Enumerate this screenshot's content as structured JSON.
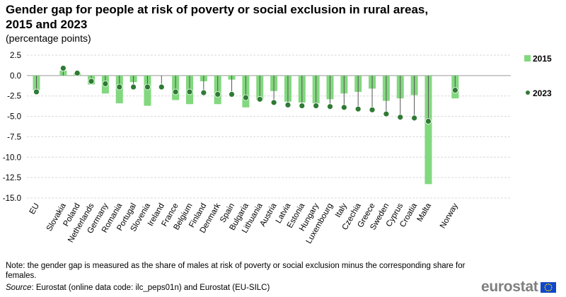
{
  "title": "Gender gap for people at risk of poverty or social exclusion in rural areas, 2015 and 2023",
  "subtitle": "(percentage points)",
  "note": "Note: the gender gap is measured as the share of males at risk of poverty or social exclusion minus the corresponding share for females.",
  "source_label": "Source",
  "source_text": ": Eurostat (online data code: ilc_peps01n) and Eurostat (EU-SILC)",
  "logo_text": "eurostat",
  "colors": {
    "bar": "#82d87e",
    "dot": "#2f7a34",
    "line": "#555555",
    "grid": "#d9d9d9",
    "flag_bg": "#0e47cb",
    "flag_star": "#ffe100"
  },
  "chart_data": {
    "type": "bar",
    "categories": [
      "EU",
      "Slovakia",
      "Poland",
      "Netherlands",
      "Germany",
      "Romania",
      "Portugal",
      "Slovenia",
      "Ireland",
      "France",
      "Belgium",
      "Finland",
      "Denmark",
      "Spain",
      "Bulgaria",
      "Lithuania",
      "Austria",
      "Latvia",
      "Estonia",
      "Hungary",
      "Luxembourg",
      "Italy",
      "Czechia",
      "Greece",
      "Sweden",
      "Cyprus",
      "Croatia",
      "Malta",
      "Norway"
    ],
    "gap_after": [
      "EU",
      "Malta"
    ],
    "series": [
      {
        "name": "2015",
        "kind": "bar",
        "values": [
          -1.8,
          0.6,
          0.3,
          -1.1,
          -2.2,
          -3.4,
          -0.8,
          -3.7,
          null,
          -3.0,
          -3.5,
          -0.7,
          -3.5,
          -0.5,
          -3.9,
          -3.0,
          -1.9,
          -3.2,
          -3.3,
          -3.4,
          -2.9,
          -2.2,
          -2.0,
          -1.6,
          -3.1,
          -2.8,
          -2.4,
          -13.3,
          -2.8
        ]
      },
      {
        "name": "2023",
        "kind": "dot",
        "values": [
          -2.0,
          0.9,
          0.3,
          -0.7,
          -1.0,
          -1.4,
          -1.4,
          -1.4,
          -1.4,
          -2.0,
          -2.0,
          -2.1,
          -2.3,
          -2.3,
          -2.7,
          -2.9,
          -3.3,
          -3.6,
          -3.7,
          -3.7,
          -3.8,
          -3.9,
          -4.1,
          -4.2,
          -4.7,
          -5.1,
          -5.2,
          -5.6,
          -1.8
        ]
      }
    ],
    "y_ticks": [
      "2.5",
      "0.0",
      "-2.5",
      "-5.0",
      "-7.5",
      "-10.0",
      "-12.5",
      "-15.0"
    ],
    "ylim": [
      -15.0,
      2.5
    ],
    "grid": true,
    "legend_placement": "right"
  }
}
